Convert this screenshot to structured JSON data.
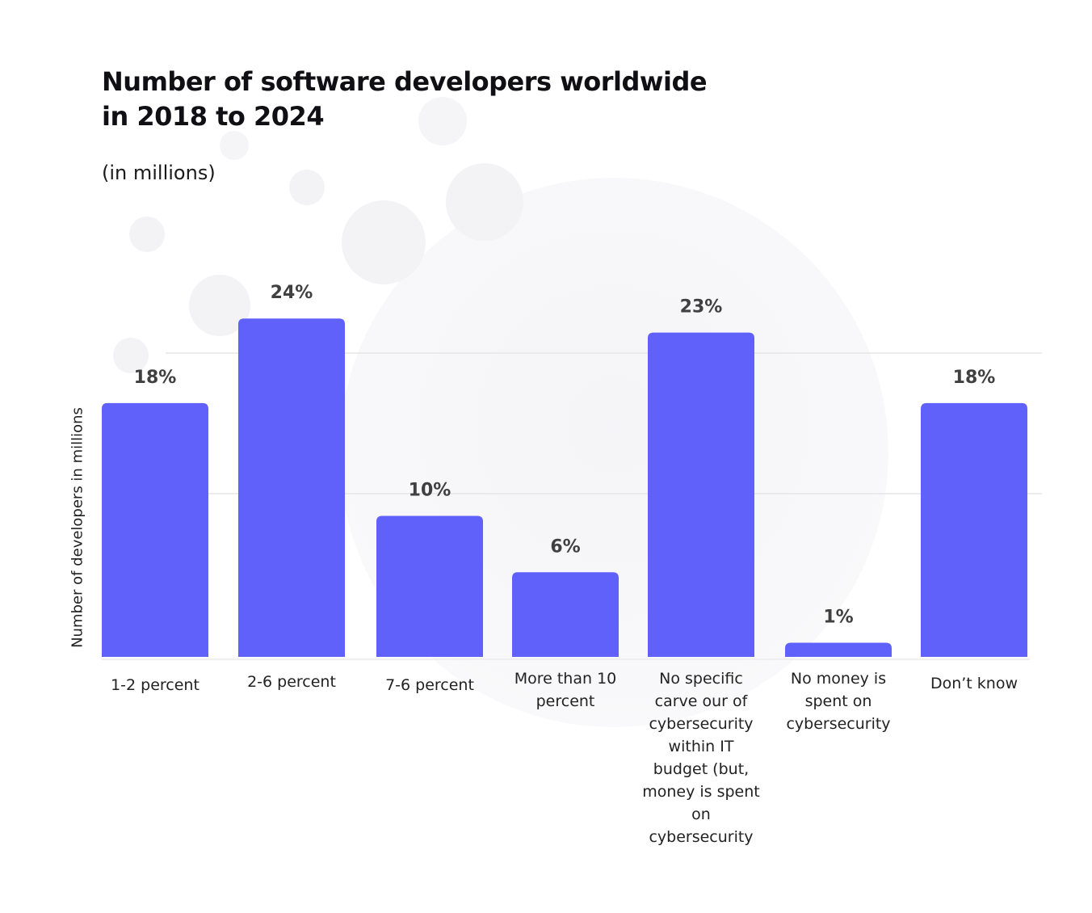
{
  "chart_data": {
    "type": "bar",
    "title": "Number of software developers worldwide in 2018 to 2024",
    "subtitle": "(in millions)",
    "ylabel": "Number of developers in millions",
    "xlabel": "",
    "categories": [
      "1-2 percent",
      "2-6 percent",
      "7-6 percent",
      "More than 10 percent",
      "No specific carve our of cybersecurity within IT budget (but, money is spent on cybersecurity",
      "No money is spent on cybersecurity",
      "Don’t know"
    ],
    "values": [
      18,
      24,
      10,
      6,
      23,
      1,
      18
    ],
    "value_labels": [
      "18%",
      "24%",
      "10%",
      "6%",
      "23%",
      "1%",
      "18%"
    ],
    "ylim": [
      0,
      24
    ],
    "grid": true,
    "bar_color": "#6060fa",
    "value_label_color": "#404040"
  }
}
